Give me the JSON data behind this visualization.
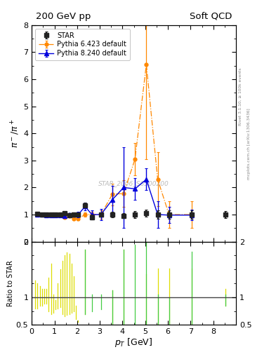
{
  "title_left": "200 GeV pp",
  "title_right": "Soft QCD",
  "xlabel": "p_{T} [GeV]",
  "ylabel_main": "pi^- / pi^+",
  "ylabel_ratio": "Ratio to STAR",
  "right_label_top": "Rivet 3.1.10, ≥ 100k events",
  "right_label_bottom": "mcplots.cern.ch [arXiv:1306.3436]",
  "watermark": "STAR_2006_S6500200",
  "xlim": [
    0,
    9
  ],
  "ylim_main": [
    0,
    8
  ],
  "ylim_ratio": [
    0.5,
    2.0
  ],
  "star_x": [
    0.25,
    0.45,
    0.65,
    0.85,
    1.05,
    1.25,
    1.45,
    1.65,
    1.85,
    2.05,
    2.35,
    2.65,
    3.05,
    3.55,
    4.05,
    4.55,
    5.05,
    5.55,
    6.05,
    7.05,
    8.55
  ],
  "star_y": [
    1.02,
    1.0,
    1.0,
    1.0,
    1.0,
    1.0,
    1.05,
    0.98,
    1.0,
    1.0,
    1.35,
    0.9,
    1.0,
    1.0,
    0.95,
    1.0,
    1.05,
    1.0,
    1.0,
    1.0,
    1.0
  ],
  "star_yerr": [
    0.05,
    0.04,
    0.04,
    0.04,
    0.04,
    0.04,
    0.05,
    0.05,
    0.06,
    0.06,
    0.09,
    0.09,
    0.09,
    0.1,
    0.09,
    0.12,
    0.12,
    0.15,
    0.15,
    0.15,
    0.12
  ],
  "p6_x": [
    0.25,
    0.45,
    0.65,
    0.85,
    1.05,
    1.25,
    1.45,
    1.65,
    1.85,
    2.05,
    2.35,
    2.65,
    3.05,
    3.55,
    4.05,
    4.55,
    5.05,
    5.55,
    6.05,
    7.05
  ],
  "p6_y": [
    1.0,
    1.0,
    0.98,
    0.98,
    0.98,
    0.97,
    0.9,
    0.95,
    0.85,
    0.85,
    1.0,
    1.0,
    1.0,
    1.75,
    1.78,
    3.05,
    6.55,
    2.3,
    1.0,
    1.0
  ],
  "p6_yerr": [
    0.02,
    0.02,
    0.02,
    0.02,
    0.02,
    0.03,
    0.05,
    0.05,
    0.05,
    0.06,
    0.08,
    0.1,
    0.15,
    0.4,
    0.5,
    0.6,
    3.5,
    1.0,
    0.5,
    0.5
  ],
  "p8_x": [
    0.25,
    0.45,
    0.65,
    0.85,
    1.05,
    1.25,
    1.45,
    1.65,
    1.85,
    2.05,
    2.35,
    2.65,
    3.05,
    3.55,
    4.05,
    4.55,
    5.05,
    5.55,
    6.05,
    7.05
  ],
  "p8_y": [
    1.0,
    1.0,
    0.98,
    0.98,
    0.98,
    0.97,
    0.95,
    1.0,
    1.0,
    1.0,
    1.3,
    1.0,
    1.0,
    1.55,
    2.0,
    1.95,
    2.3,
    1.0,
    0.98,
    0.98
  ],
  "p8_yerr": [
    0.02,
    0.02,
    0.02,
    0.02,
    0.02,
    0.03,
    0.05,
    0.06,
    0.08,
    0.1,
    0.15,
    0.15,
    0.2,
    0.5,
    1.5,
    0.4,
    0.4,
    0.5,
    0.3,
    0.2
  ],
  "ratio_yellow_x": [
    0.15,
    0.25,
    0.35,
    0.45,
    0.55,
    0.65,
    0.75,
    0.85,
    0.95,
    1.05,
    1.15,
    1.25,
    1.35,
    1.45,
    1.55,
    1.65,
    1.75,
    1.85,
    1.95,
    2.05,
    2.35,
    3.55,
    4.05,
    5.05,
    5.55,
    6.05,
    7.05,
    8.55
  ],
  "ratio_yellow_lo": [
    0.8,
    0.8,
    0.85,
    0.85,
    0.88,
    0.88,
    0.75,
    0.7,
    0.72,
    0.78,
    0.8,
    0.82,
    0.7,
    0.65,
    0.68,
    0.7,
    0.72,
    0.75,
    0.6,
    0.55,
    0.7,
    0.35,
    0.4,
    0.35,
    0.38,
    0.4,
    0.4,
    0.85
  ],
  "ratio_yellow_hi": [
    1.3,
    1.25,
    1.2,
    1.15,
    1.15,
    1.15,
    1.35,
    1.6,
    1.05,
    0.95,
    1.25,
    1.5,
    1.65,
    1.75,
    1.8,
    1.78,
    1.6,
    1.38,
    0.85,
    0.58,
    1.85,
    1.12,
    1.85,
    1.42,
    1.52,
    1.52,
    1.52,
    1.15
  ],
  "ratio_green_x": [
    2.35,
    2.65,
    3.05,
    3.55,
    4.05,
    4.55,
    5.05,
    5.55,
    6.05,
    7.05,
    8.55
  ],
  "ratio_green_lo": [
    0.7,
    0.75,
    0.78,
    0.35,
    0.4,
    0.52,
    0.35,
    0.38,
    0.4,
    0.4,
    0.85
  ],
  "ratio_green_hi": [
    1.85,
    1.05,
    1.05,
    1.12,
    1.85,
    1.95,
    2.3,
    1.05,
    0.99,
    1.82,
    1.05
  ],
  "star_color": "#222222",
  "p6_color": "#ff8800",
  "p8_color": "#0000dd",
  "bg_color": "#ffffff",
  "right_color": "#888888"
}
